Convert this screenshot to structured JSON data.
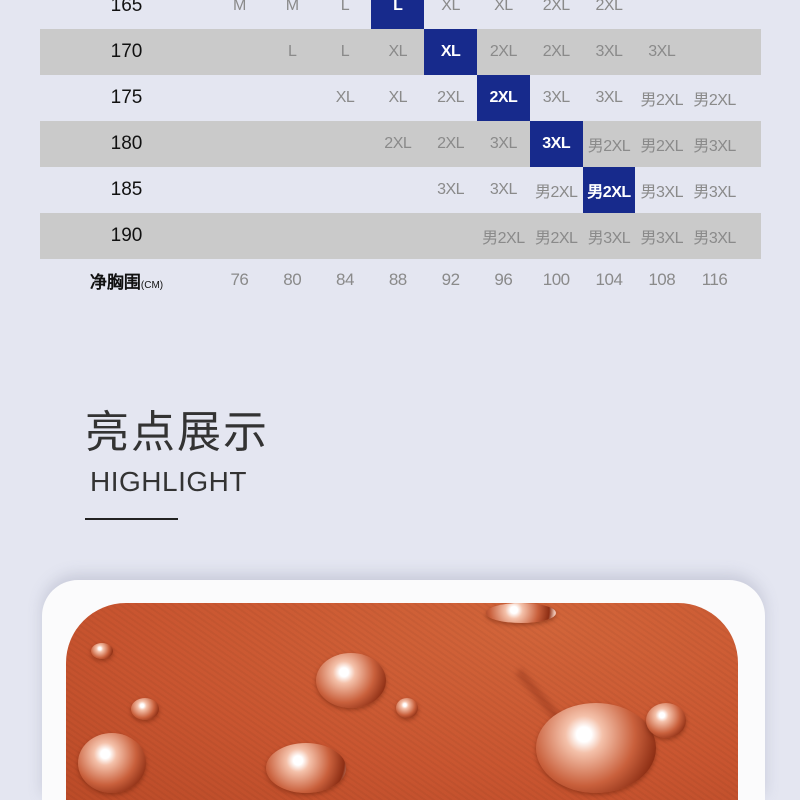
{
  "size_table": {
    "rows": [
      {
        "height": "165",
        "cells": [
          "M",
          "M",
          "L",
          "L",
          "XL",
          "XL",
          "2XL",
          "2XL",
          "",
          ""
        ],
        "highlight": 3
      },
      {
        "height": "170",
        "cells": [
          "",
          "L",
          "L",
          "XL",
          "XL",
          "2XL",
          "2XL",
          "3XL",
          "3XL",
          ""
        ],
        "highlight": 4
      },
      {
        "height": "175",
        "cells": [
          "",
          "",
          "XL",
          "XL",
          "2XL",
          "2XL",
          "3XL",
          "3XL",
          "男2XL",
          "男2XL"
        ],
        "highlight": 5
      },
      {
        "height": "180",
        "cells": [
          "",
          "",
          "",
          "2XL",
          "2XL",
          "3XL",
          "3XL",
          "男2XL",
          "男2XL",
          "男3XL"
        ],
        "highlight": 6
      },
      {
        "height": "185",
        "cells": [
          "",
          "",
          "",
          "",
          "3XL",
          "3XL",
          "男2XL",
          "男2XL",
          "男3XL",
          "男3XL"
        ],
        "highlight": 7
      },
      {
        "height": "190",
        "cells": [
          "",
          "",
          "",
          "",
          "",
          "男2XL",
          "男2XL",
          "男3XL",
          "男3XL",
          "男3XL"
        ],
        "highlight": -1
      }
    ],
    "chest_label": "净胸围",
    "chest_unit": "(CM)",
    "chest_values": [
      "76",
      "80",
      "84",
      "88",
      "92",
      "96",
      "100",
      "104",
      "108",
      "116"
    ],
    "highlight_color": "#172a8c"
  },
  "section": {
    "title": "亮点展示",
    "subtitle": "HIGHLIGHT"
  },
  "photo": {
    "subject": "water droplets on orange fabric",
    "color": "#c95530"
  }
}
